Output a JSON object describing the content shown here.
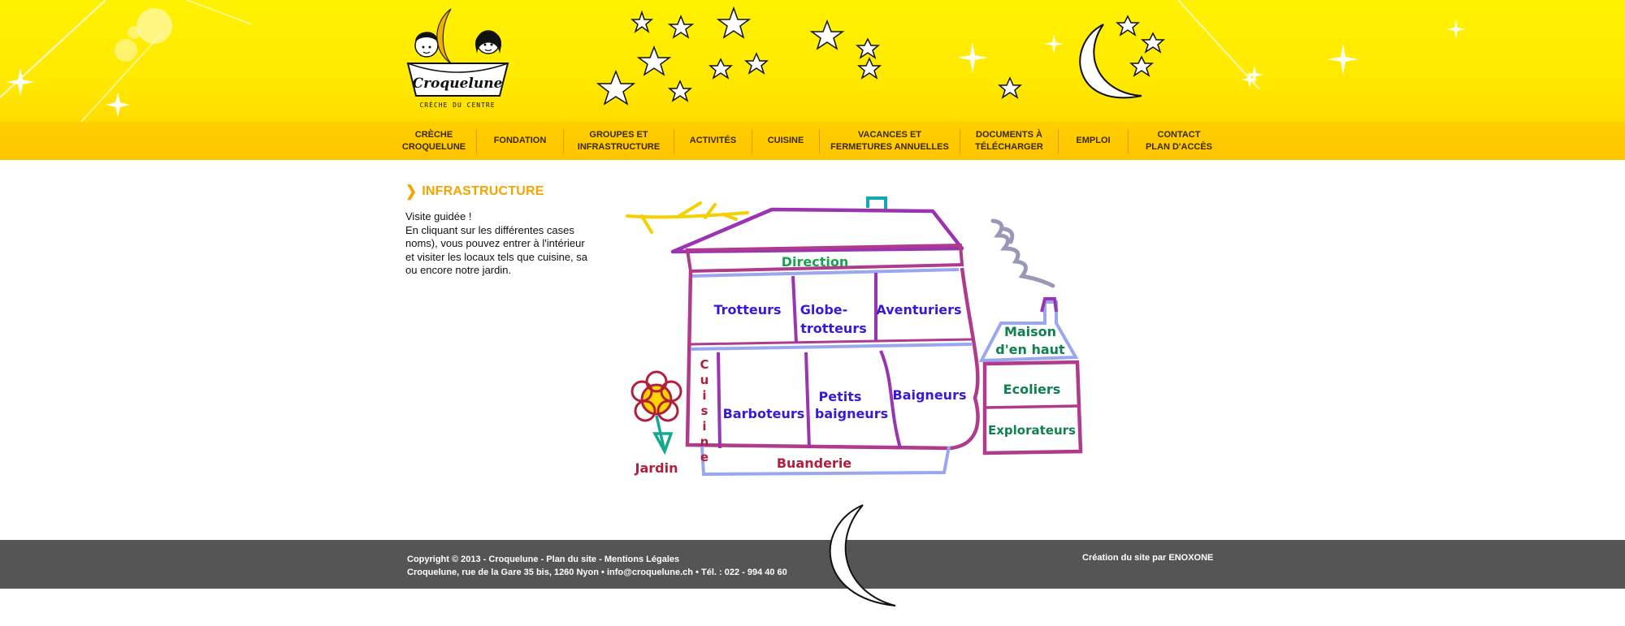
{
  "brand": {
    "name": "Croquelune",
    "tagline": "CRÈCHE DU CENTRE"
  },
  "nav": {
    "items": [
      {
        "label": "CRÈCHE\nCROQUELUNE"
      },
      {
        "label": "FONDATION"
      },
      {
        "label": "GROUPES ET\nINFRASTRUCTURE"
      },
      {
        "label": "ACTIVITÉS"
      },
      {
        "label": "CUISINE"
      },
      {
        "label": "VACANCES ET\nFERMETURES ANNUELLES"
      },
      {
        "label": "DOCUMENTS À\nTÉLÉCHARGER"
      },
      {
        "label": "EMPLOI"
      },
      {
        "label": "CONTACT\nPLAN  D'ACCÈS"
      }
    ]
  },
  "main": {
    "title": "INFRASTRUCTURE",
    "intro_lines": [
      "Visite guidée !",
      "En cliquant sur les différentes cases",
      "noms), vous pouvez entrer à l'intérieur",
      "et visiter les locaux tels que cuisine, sa",
      "ou encore notre jardin."
    ]
  },
  "house_map": {
    "rooms": {
      "direction": "Direction",
      "trotteurs": "Trotteurs",
      "globe_1": "Globe-",
      "globe_2": "trotteurs",
      "aventuriers": "Aventuriers",
      "cuisine": "Cuisine",
      "barboteurs": "Barboteurs",
      "petits_1": "Petits",
      "petits_2": "baigneurs",
      "baigneurs": "Baigneurs",
      "buanderie": "Buanderie",
      "jardin": "Jardin",
      "maison_1": "Maison",
      "maison_2": "d'en haut",
      "ecoliers": "Ecoliers",
      "explorateurs": "Explorateurs"
    }
  },
  "footer": {
    "copyright": "Copyright © 2013 - Croquelune - ",
    "sitemap": "Plan du site",
    "sep": " - ",
    "legal": "Mentions Légales",
    "address": "Croquelune, rue de la Gare 35 bis, 1260 Nyon • ",
    "email": "info@croquelune.ch",
    "phone": " • Tél. : 022 - 994 40 60",
    "credit": "Création du site par ENOXONE"
  },
  "colors": {
    "header_yellow": "#fff200",
    "nav_yellow": "#ffc400",
    "accent": "#f5a400",
    "footer": "#555555"
  }
}
